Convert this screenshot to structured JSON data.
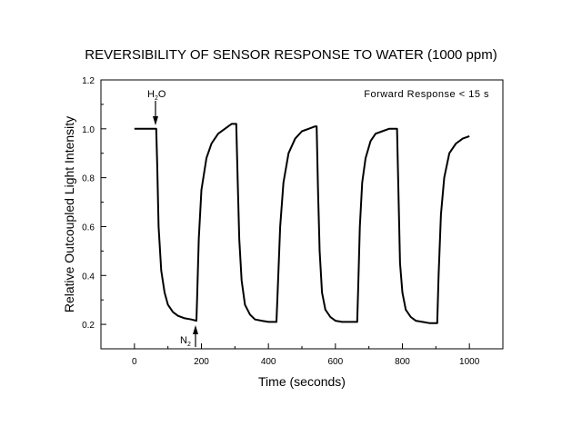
{
  "chart_data": {
    "type": "line",
    "title": "REVERSIBILITY OF SENSOR RESPONSE TO WATER (1000 ppm)",
    "xlabel": "Time (seconds)",
    "ylabel": "Relative Outcoupled Light Intensity",
    "xlim": [
      -100,
      1100
    ],
    "ylim": [
      0.1,
      1.2
    ],
    "xticks": [
      0,
      200,
      400,
      600,
      800,
      1000
    ],
    "yticks": [
      0.2,
      0.4,
      0.6,
      0.8,
      1.0,
      1.2
    ],
    "xtick_labels": [
      "0",
      "200",
      "400",
      "600",
      "800",
      "1000"
    ],
    "ytick_labels": [
      "0.2",
      "0.4",
      "0.6",
      "0.8",
      "1.0",
      "1.2"
    ],
    "grid": false,
    "series": [
      {
        "x": [
          0,
          20,
          40,
          55,
          65,
          68,
          72,
          80,
          90,
          100,
          115,
          130,
          150,
          170,
          185,
          187,
          192,
          200,
          215,
          230,
          250,
          270,
          290,
          304,
          308,
          313,
          320,
          330,
          345,
          360,
          380,
          400,
          420,
          424,
          428,
          435,
          445,
          460,
          480,
          500,
          520,
          540,
          544,
          548,
          553,
          560,
          570,
          585,
          600,
          620,
          640,
          660,
          665,
          668,
          673,
          680,
          690,
          705,
          720,
          740,
          760,
          780,
          784,
          788,
          793,
          800,
          810,
          825,
          840,
          860,
          880,
          900,
          904,
          908,
          915,
          925,
          940,
          960,
          980,
          1000
        ],
        "y": [
          1.0,
          1.0,
          1.0,
          1.0,
          1.0,
          0.85,
          0.6,
          0.42,
          0.33,
          0.28,
          0.25,
          0.235,
          0.225,
          0.22,
          0.215,
          0.3,
          0.55,
          0.75,
          0.88,
          0.94,
          0.98,
          1.0,
          1.02,
          1.02,
          0.8,
          0.55,
          0.38,
          0.28,
          0.24,
          0.22,
          0.215,
          0.21,
          0.21,
          0.21,
          0.35,
          0.6,
          0.78,
          0.9,
          0.96,
          0.99,
          1.0,
          1.01,
          1.01,
          0.75,
          0.5,
          0.33,
          0.26,
          0.23,
          0.215,
          0.21,
          0.21,
          0.21,
          0.21,
          0.35,
          0.6,
          0.78,
          0.88,
          0.95,
          0.98,
          0.99,
          1.0,
          1.0,
          1.0,
          0.75,
          0.45,
          0.33,
          0.26,
          0.23,
          0.215,
          0.21,
          0.205,
          0.205,
          0.205,
          0.4,
          0.65,
          0.8,
          0.9,
          0.94,
          0.96,
          0.97
        ]
      }
    ],
    "annotations": [
      {
        "id": "h2o",
        "text": "H",
        "sub": "2",
        "after": "O",
        "x": 65,
        "y": 1.0
      },
      {
        "id": "n2",
        "text": "N",
        "sub": "2",
        "x": 185,
        "y": 0.215
      },
      {
        "id": "fwd",
        "text": "Forward Response < 15 s"
      }
    ]
  }
}
